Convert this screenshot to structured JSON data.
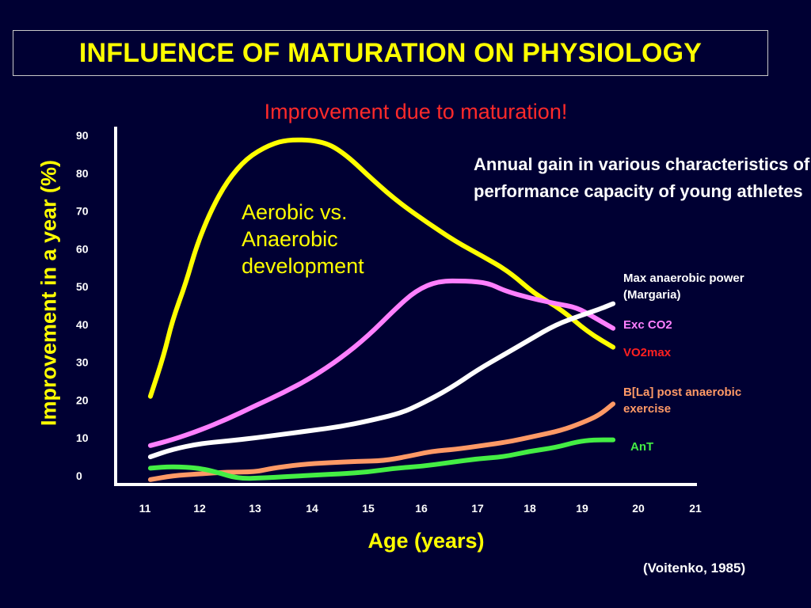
{
  "title": "INFLUENCE OF MATURATION ON PHYSIOLOGY",
  "subtitle": "Improvement due to maturation!",
  "annotation": [
    "Aerobic vs.",
    "Anaerobic",
    "development"
  ],
  "description": "Annual gain in various characteristics of performance capacity of young athletes",
  "source": "(Voitenko, 1985)",
  "colors": {
    "background": "#000033",
    "title": "#ffff00",
    "subtitle": "#ff2a2a",
    "axes": "#ffffff"
  },
  "chart_data": {
    "type": "line",
    "xlabel": "Age (years)",
    "ylabel": "Improvement in a year (%)",
    "xlim": [
      11,
      21
    ],
    "ylim": [
      0,
      90
    ],
    "x_ticks": [
      "11",
      "12",
      "13",
      "14",
      "15",
      "16",
      "17",
      "18",
      "19",
      "20",
      "21"
    ],
    "y_ticks": [
      "0",
      "10",
      "20",
      "30",
      "40",
      "50",
      "60",
      "70",
      "80",
      "90"
    ],
    "grid": false,
    "legend": "right, labels at line ends",
    "series": [
      {
        "name": "VO2max",
        "color": "#ffff00",
        "legend_color": "#ff2020",
        "points": [
          [
            11.1,
            21
          ],
          [
            11.35,
            32
          ],
          [
            11.5,
            41
          ],
          [
            11.75,
            51
          ],
          [
            11.95,
            61
          ],
          [
            12.2,
            70
          ],
          [
            12.5,
            78
          ],
          [
            12.85,
            84
          ],
          [
            13.25,
            87.5
          ],
          [
            13.6,
            89
          ],
          [
            14.2,
            88.5
          ],
          [
            14.6,
            85
          ],
          [
            15.1,
            78
          ],
          [
            15.6,
            72
          ],
          [
            16.1,
            67
          ],
          [
            16.6,
            62
          ],
          [
            17.1,
            58
          ],
          [
            17.6,
            54
          ],
          [
            18.1,
            48
          ],
          [
            18.6,
            44
          ],
          [
            19.1,
            38
          ],
          [
            19.55,
            34
          ]
        ]
      },
      {
        "name": "Exc CO2",
        "color": "#ff80ff",
        "legend_color": "#ff80ff",
        "points": [
          [
            11.1,
            8
          ],
          [
            11.5,
            9.5
          ],
          [
            12,
            12
          ],
          [
            12.5,
            15
          ],
          [
            13,
            18.5
          ],
          [
            13.5,
            22
          ],
          [
            14,
            26
          ],
          [
            14.5,
            31
          ],
          [
            15,
            37
          ],
          [
            15.5,
            44
          ],
          [
            15.9,
            49
          ],
          [
            16.3,
            51.5
          ],
          [
            16.8,
            51.5
          ],
          [
            17.2,
            51
          ],
          [
            17.5,
            49
          ],
          [
            18,
            47
          ],
          [
            18.5,
            45.5
          ],
          [
            18.9,
            44.5
          ],
          [
            19.2,
            42
          ],
          [
            19.55,
            39
          ]
        ]
      },
      {
        "name": "Max anaerobic power (Margaria)",
        "color": "#ffffff",
        "legend_color": "#ffffff",
        "points": [
          [
            11.1,
            5
          ],
          [
            11.5,
            7
          ],
          [
            12,
            8.5
          ],
          [
            12.5,
            9.2
          ],
          [
            13,
            10
          ],
          [
            13.5,
            11
          ],
          [
            14,
            12
          ],
          [
            14.5,
            13
          ],
          [
            15,
            14.5
          ],
          [
            15.6,
            16.5
          ],
          [
            16,
            19
          ],
          [
            16.5,
            23
          ],
          [
            17,
            28
          ],
          [
            17.5,
            32
          ],
          [
            18,
            36
          ],
          [
            18.5,
            40
          ],
          [
            19,
            42.5
          ],
          [
            19.3,
            44
          ],
          [
            19.55,
            45.5
          ]
        ]
      },
      {
        "name": "B[La] post anaerobic exercise",
        "color": "#ff9966",
        "legend_color": "#ff9966",
        "points": [
          [
            11.1,
            -1
          ],
          [
            11.5,
            0
          ],
          [
            12,
            0.5
          ],
          [
            12.5,
            1
          ],
          [
            13,
            1
          ],
          [
            13.3,
            2
          ],
          [
            13.8,
            3
          ],
          [
            14.3,
            3.5
          ],
          [
            14.8,
            3.8
          ],
          [
            15.3,
            4
          ],
          [
            15.7,
            5
          ],
          [
            16.2,
            6.5
          ],
          [
            16.6,
            7
          ],
          [
            17.1,
            8
          ],
          [
            17.6,
            9
          ],
          [
            18.1,
            10.5
          ],
          [
            18.6,
            12
          ],
          [
            19,
            14
          ],
          [
            19.3,
            16
          ],
          [
            19.55,
            19
          ]
        ]
      },
      {
        "name": "AnT",
        "color": "#44ee44",
        "legend_color": "#44ee44",
        "points": [
          [
            11.1,
            2
          ],
          [
            11.5,
            2.5
          ],
          [
            12,
            2
          ],
          [
            12.3,
            1
          ],
          [
            12.7,
            -0.8
          ],
          [
            13.2,
            -0.5
          ],
          [
            13.8,
            0
          ],
          [
            14.5,
            0.5
          ],
          [
            15,
            1
          ],
          [
            15.5,
            2
          ],
          [
            16,
            2.5
          ],
          [
            16.5,
            3.5
          ],
          [
            17,
            4.5
          ],
          [
            17.5,
            5
          ],
          [
            18,
            6.5
          ],
          [
            18.5,
            7.5
          ],
          [
            18.9,
            9
          ],
          [
            19.2,
            9.5
          ],
          [
            19.55,
            9.5
          ]
        ]
      }
    ]
  }
}
